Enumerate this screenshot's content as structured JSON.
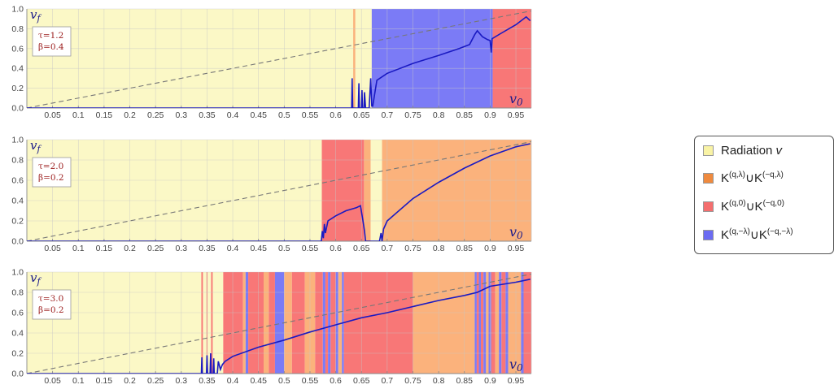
{
  "chart_data": [
    {
      "type": "area",
      "ylabel": "v_f",
      "xlabel": "v_0",
      "annotation": [
        "τ=1.2",
        "β=0.4"
      ],
      "xlim": [
        0.0,
        0.98
      ],
      "ylim": [
        0.0,
        1.0
      ],
      "xticks": [
        "0.05",
        "0.1",
        "0.15",
        "0.2",
        "0.25",
        "0.3",
        "0.35",
        "0.4",
        "0.45",
        "0.5",
        "0.55",
        "0.6",
        "0.65",
        "0.7",
        "0.75",
        "0.8",
        "0.85",
        "0.9",
        "0.95"
      ],
      "yticks": [
        "0.0",
        "0.2",
        "0.4",
        "0.6",
        "0.8",
        "1.0"
      ],
      "regions": [
        {
          "from": 0.0,
          "to": 0.67,
          "class": "radiation"
        },
        {
          "from": 0.634,
          "to": 0.638,
          "class": "K_lambda"
        },
        {
          "from": 0.67,
          "to": 0.905,
          "class": "K_minus_lambda"
        },
        {
          "from": 0.905,
          "to": 0.98,
          "class": "K_zero"
        }
      ],
      "curve": [
        [
          0.0,
          0.0
        ],
        [
          0.631,
          0.0
        ],
        [
          0.632,
          0.3
        ],
        [
          0.633,
          0.0
        ],
        [
          0.644,
          0.0
        ],
        [
          0.645,
          0.25
        ],
        [
          0.646,
          0.0
        ],
        [
          0.65,
          0.0
        ],
        [
          0.651,
          0.18
        ],
        [
          0.652,
          0.0
        ],
        [
          0.655,
          0.0
        ],
        [
          0.656,
          0.16
        ],
        [
          0.658,
          0.0
        ],
        [
          0.665,
          0.0
        ],
        [
          0.668,
          0.3
        ],
        [
          0.67,
          0.02
        ],
        [
          0.672,
          0.02
        ],
        [
          0.68,
          0.28
        ],
        [
          0.7,
          0.35
        ],
        [
          0.75,
          0.45
        ],
        [
          0.8,
          0.53
        ],
        [
          0.84,
          0.6
        ],
        [
          0.86,
          0.64
        ],
        [
          0.87,
          0.74
        ],
        [
          0.875,
          0.78
        ],
        [
          0.885,
          0.72
        ],
        [
          0.895,
          0.69
        ],
        [
          0.9,
          0.68
        ],
        [
          0.902,
          0.56
        ],
        [
          0.904,
          0.7
        ],
        [
          0.92,
          0.75
        ],
        [
          0.95,
          0.84
        ],
        [
          0.97,
          0.92
        ],
        [
          0.978,
          0.88
        ]
      ]
    },
    {
      "type": "area",
      "ylabel": "v_f",
      "xlabel": "v_0",
      "annotation": [
        "τ=2.0",
        "β=0.2"
      ],
      "xlim": [
        0.0,
        0.98
      ],
      "ylim": [
        0.0,
        1.0
      ],
      "xticks": [
        "0.05",
        "0.1",
        "0.15",
        "0.2",
        "0.25",
        "0.3",
        "0.35",
        "0.4",
        "0.45",
        "0.5",
        "0.55",
        "0.6",
        "0.65",
        "0.7",
        "0.75",
        "0.8",
        "0.85",
        "0.9",
        "0.95"
      ],
      "yticks": [
        "0.0",
        "0.2",
        "0.4",
        "0.6",
        "0.8",
        "1.0"
      ],
      "regions": [
        {
          "from": 0.0,
          "to": 0.573,
          "class": "radiation"
        },
        {
          "from": 0.573,
          "to": 0.655,
          "class": "K_zero"
        },
        {
          "from": 0.655,
          "to": 0.668,
          "class": "K_lambda"
        },
        {
          "from": 0.668,
          "to": 0.69,
          "class": "radiation"
        },
        {
          "from": 0.69,
          "to": 0.98,
          "class": "K_lambda"
        }
      ],
      "curve": [
        [
          0.0,
          0.0
        ],
        [
          0.572,
          0.0
        ],
        [
          0.574,
          0.1
        ],
        [
          0.576,
          0.03
        ],
        [
          0.578,
          0.17
        ],
        [
          0.58,
          0.08
        ],
        [
          0.585,
          0.2
        ],
        [
          0.6,
          0.25
        ],
        [
          0.62,
          0.3
        ],
        [
          0.64,
          0.33
        ],
        [
          0.648,
          0.35
        ],
        [
          0.653,
          0.2
        ],
        [
          0.656,
          0.1
        ],
        [
          0.658,
          0.0
        ],
        [
          0.685,
          0.0
        ],
        [
          0.688,
          0.08
        ],
        [
          0.69,
          0.0
        ],
        [
          0.693,
          0.12
        ],
        [
          0.7,
          0.2
        ],
        [
          0.75,
          0.42
        ],
        [
          0.8,
          0.58
        ],
        [
          0.85,
          0.72
        ],
        [
          0.9,
          0.84
        ],
        [
          0.95,
          0.93
        ],
        [
          0.978,
          0.96
        ]
      ]
    },
    {
      "type": "area",
      "ylabel": "v_f",
      "xlabel": "v_0",
      "annotation": [
        "τ=3.0",
        "β=0.2"
      ],
      "xlim": [
        0.0,
        0.98
      ],
      "ylim": [
        0.0,
        1.0
      ],
      "xticks": [
        "0.05",
        "0.1",
        "0.15",
        "0.2",
        "0.25",
        "0.3",
        "0.35",
        "0.4",
        "0.45",
        "0.5",
        "0.55",
        "0.6",
        "0.65",
        "0.7",
        "0.75",
        "0.8",
        "0.85",
        "0.9",
        "0.95"
      ],
      "yticks": [
        "0.0",
        "0.2",
        "0.4",
        "0.6",
        "0.8",
        "1.0"
      ],
      "regions": [
        {
          "from": 0.0,
          "to": 0.3815,
          "class": "radiation"
        },
        {
          "from": 0.339,
          "to": 0.342,
          "class": "K_zero"
        },
        {
          "from": 0.349,
          "to": 0.351,
          "class": "K_zero"
        },
        {
          "from": 0.358,
          "to": 0.361,
          "class": "K_zero"
        },
        {
          "from": 0.3815,
          "to": 0.42,
          "class": "K_zero"
        },
        {
          "from": 0.42,
          "to": 0.425,
          "class": "K_lambda"
        },
        {
          "from": 0.425,
          "to": 0.43,
          "class": "K_minus_lambda"
        },
        {
          "from": 0.43,
          "to": 0.46,
          "class": "K_zero"
        },
        {
          "from": 0.46,
          "to": 0.47,
          "class": "K_lambda"
        },
        {
          "from": 0.47,
          "to": 0.482,
          "class": "K_zero"
        },
        {
          "from": 0.482,
          "to": 0.5,
          "class": "K_minus_lambda"
        },
        {
          "from": 0.5,
          "to": 0.515,
          "class": "K_lambda"
        },
        {
          "from": 0.515,
          "to": 0.54,
          "class": "K_zero"
        },
        {
          "from": 0.54,
          "to": 0.56,
          "class": "K_lambda"
        },
        {
          "from": 0.56,
          "to": 0.575,
          "class": "K_zero"
        },
        {
          "from": 0.575,
          "to": 0.58,
          "class": "K_minus_lambda"
        },
        {
          "from": 0.58,
          "to": 0.585,
          "class": "K_zero"
        },
        {
          "from": 0.585,
          "to": 0.59,
          "class": "K_minus_lambda"
        },
        {
          "from": 0.59,
          "to": 0.6,
          "class": "K_zero"
        },
        {
          "from": 0.6,
          "to": 0.605,
          "class": "K_minus_lambda"
        },
        {
          "from": 0.605,
          "to": 0.612,
          "class": "K_lambda"
        },
        {
          "from": 0.612,
          "to": 0.616,
          "class": "K_minus_lambda"
        },
        {
          "from": 0.616,
          "to": 0.75,
          "class": "K_zero"
        },
        {
          "from": 0.75,
          "to": 0.87,
          "class": "K_lambda"
        },
        {
          "from": 0.87,
          "to": 0.874,
          "class": "K_minus_lambda"
        },
        {
          "from": 0.874,
          "to": 0.878,
          "class": "K_zero"
        },
        {
          "from": 0.878,
          "to": 0.882,
          "class": "K_minus_lambda"
        },
        {
          "from": 0.882,
          "to": 0.887,
          "class": "K_zero"
        },
        {
          "from": 0.887,
          "to": 0.892,
          "class": "K_minus_lambda"
        },
        {
          "from": 0.892,
          "to": 0.897,
          "class": "K_lambda"
        },
        {
          "from": 0.897,
          "to": 0.902,
          "class": "K_minus_lambda"
        },
        {
          "from": 0.902,
          "to": 0.91,
          "class": "K_zero"
        },
        {
          "from": 0.91,
          "to": 0.917,
          "class": "K_lambda"
        },
        {
          "from": 0.917,
          "to": 0.922,
          "class": "K_minus_lambda"
        },
        {
          "from": 0.922,
          "to": 0.93,
          "class": "K_zero"
        },
        {
          "from": 0.93,
          "to": 0.935,
          "class": "K_minus_lambda"
        },
        {
          "from": 0.935,
          "to": 0.96,
          "class": "K_lambda"
        },
        {
          "from": 0.96,
          "to": 0.965,
          "class": "K_minus_lambda"
        },
        {
          "from": 0.965,
          "to": 0.98,
          "class": "K_zero"
        }
      ],
      "curve": [
        [
          0.0,
          0.0
        ],
        [
          0.339,
          0.0
        ],
        [
          0.34,
          0.16
        ],
        [
          0.341,
          0.0
        ],
        [
          0.349,
          0.0
        ],
        [
          0.35,
          0.18
        ],
        [
          0.351,
          0.0
        ],
        [
          0.356,
          0.0
        ],
        [
          0.357,
          0.2
        ],
        [
          0.358,
          0.0
        ],
        [
          0.362,
          0.0
        ],
        [
          0.363,
          0.15
        ],
        [
          0.364,
          0.0
        ],
        [
          0.37,
          0.0
        ],
        [
          0.372,
          0.12
        ],
        [
          0.376,
          0.04
        ],
        [
          0.38,
          0.09
        ],
        [
          0.385,
          0.12
        ],
        [
          0.4,
          0.17
        ],
        [
          0.45,
          0.26
        ],
        [
          0.5,
          0.33
        ],
        [
          0.55,
          0.41
        ],
        [
          0.6,
          0.48
        ],
        [
          0.65,
          0.55
        ],
        [
          0.7,
          0.6
        ],
        [
          0.75,
          0.66
        ],
        [
          0.8,
          0.72
        ],
        [
          0.85,
          0.77
        ],
        [
          0.875,
          0.8
        ],
        [
          0.9,
          0.86
        ],
        [
          0.95,
          0.9
        ],
        [
          0.978,
          0.93
        ]
      ]
    }
  ],
  "legend": [
    {
      "label": "Radiation ",
      "italic": "v",
      "color": "#f9f3a5"
    },
    {
      "label": "K",
      "sup1": "(q,λ)",
      "mid": "∪K",
      "sup2": "(−q,λ)",
      "color": "#ef8a3e"
    },
    {
      "label": "K",
      "sup1": "(q,0)",
      "mid": "∪K",
      "sup2": "(−q,0)",
      "color": "#f46e6e"
    },
    {
      "label": "K",
      "sup1": "(q,−λ)",
      "mid": "∪K",
      "sup2": "(−q,−λ)",
      "color": "#6b6bf2"
    }
  ],
  "colors": {
    "radiation": "#fbf8c6",
    "K_lambda": "#fbb27c",
    "K_zero": "#f87777",
    "K_minus_lambda": "#7b7bf6",
    "curve": "#1a1ac2",
    "diagonal": "#777777",
    "annotation": "#9b1b1b"
  }
}
